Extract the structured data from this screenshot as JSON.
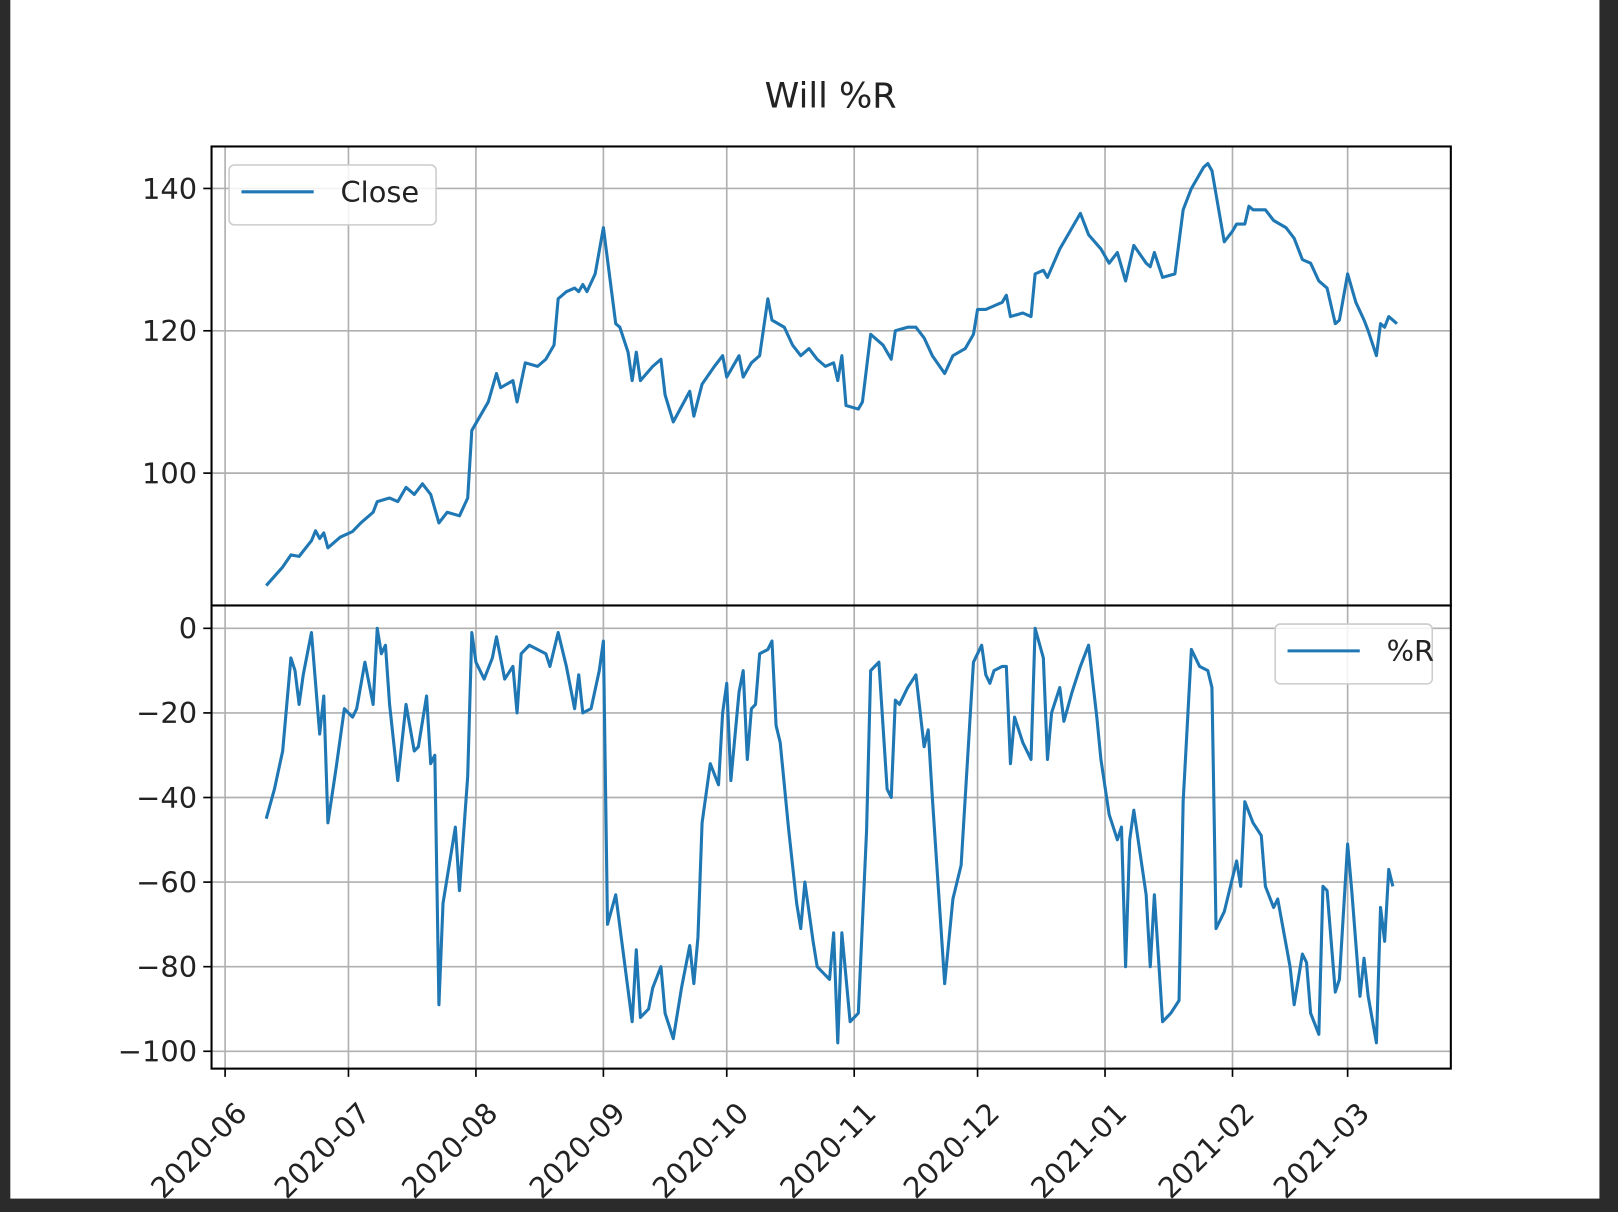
{
  "chart_data": [
    {
      "type": "line",
      "title": "Will %R",
      "x": [
        10,
        12,
        14,
        16,
        18,
        21,
        22,
        23,
        24,
        25,
        28,
        31,
        33,
        36,
        37,
        40,
        42,
        44,
        46,
        48,
        50,
        52,
        54,
        57,
        59,
        60,
        62,
        64,
        66,
        67,
        70,
        71,
        73,
        76,
        78,
        80,
        81,
        83,
        85,
        86,
        87,
        88,
        90,
        92,
        93,
        95,
        96,
        98,
        99,
        100,
        101,
        104,
        106,
        107,
        109,
        113,
        114,
        116,
        119,
        121,
        122,
        125,
        126,
        128,
        130,
        132,
        133,
        136,
        138,
        140,
        142,
        144,
        146,
        148,
        149,
        150,
        151,
        154,
        155,
        157,
        160,
        162,
        163,
        166,
        168,
        170,
        172,
        175,
        177,
        180,
        182,
        183,
        185,
        187,
        189,
        190,
        191,
        194,
        196,
        197,
        199,
        200,
        203,
        205,
        208,
        210,
        213,
        215,
        217,
        219,
        221,
        224,
        225,
        226,
        228,
        231,
        233,
        235,
        238,
        239,
        240,
        243,
        245,
        246,
        248,
        249,
        250,
        253,
        255,
        258,
        260,
        262,
        264,
        266,
        268,
        270,
        271,
        273,
        275,
        277,
        278,
        280,
        281,
        282,
        283,
        285
      ],
      "series": [
        {
          "name": "Close",
          "color": "#1f77b4",
          "values": [
            84.2,
            85.5,
            86.8,
            88.5,
            88.3,
            90.5,
            91.9,
            90.8,
            91.6,
            89.5,
            91,
            91.8,
            93,
            94.5,
            96,
            96.5,
            96,
            98,
            97,
            98.5,
            97,
            93,
            94.5,
            94,
            96.5,
            106,
            108,
            110,
            114,
            112,
            113,
            110,
            115.5,
            115,
            116,
            118,
            124.5,
            125.5,
            126,
            125.5,
            126.5,
            125.5,
            128,
            134.5,
            130,
            121,
            120.5,
            117,
            113,
            117,
            113,
            115,
            116,
            111,
            107.2,
            111.5,
            108,
            112.5,
            115,
            116.5,
            113.5,
            116.5,
            113.5,
            115.5,
            116.5,
            124.5,
            121.5,
            120.5,
            118,
            116.5,
            117.5,
            116,
            115,
            115.5,
            113,
            116.5,
            109.5,
            109,
            110,
            119.5,
            118,
            116,
            120,
            120.5,
            120.5,
            119,
            116.5,
            114,
            116.5,
            117.5,
            119.5,
            123,
            123,
            123.5,
            124,
            125,
            122,
            122.5,
            122,
            128,
            128.5,
            127.5,
            131.5,
            133.5,
            136.5,
            133.5,
            131.5,
            129.5,
            131,
            127,
            132,
            129.5,
            129,
            131,
            127.5,
            128,
            137,
            140,
            143,
            143.5,
            142.5,
            132.5,
            134,
            135,
            135,
            137.5,
            137,
            137,
            135.5,
            134.5,
            133,
            130,
            129.5,
            127,
            126,
            121,
            121.5,
            128,
            124,
            121.5,
            120,
            116.5,
            121,
            120.5,
            122,
            121
          ]
        }
      ],
      "ylim": [
        81.4,
        145.9
      ],
      "yticks": [
        100,
        120,
        140
      ],
      "grid": true,
      "legend": "upper left"
    },
    {
      "type": "line",
      "x": [
        10,
        12,
        14,
        16,
        17,
        18,
        19,
        21,
        23,
        24,
        25,
        27,
        29,
        31,
        32,
        34,
        36,
        37,
        38,
        39,
        40,
        42,
        44,
        46,
        47,
        49,
        50,
        51,
        52,
        53,
        56,
        57,
        59,
        60,
        61,
        63,
        65,
        66,
        68,
        70,
        71,
        72,
        74,
        76,
        78,
        79,
        81,
        83,
        85,
        86,
        87,
        89,
        91,
        92,
        93,
        95,
        97,
        99,
        100,
        101,
        103,
        104,
        106,
        107,
        109,
        111,
        113,
        114,
        115,
        116,
        118,
        120,
        121,
        122,
        123,
        125,
        126,
        127,
        128,
        129,
        130,
        132,
        133,
        134,
        135,
        137,
        139,
        140,
        141,
        143,
        144,
        146,
        147,
        148,
        149,
        150,
        152,
        154,
        156,
        157,
        159,
        161,
        162,
        163,
        164,
        166,
        168,
        170,
        171,
        172,
        175,
        177,
        179,
        181,
        182,
        184,
        185,
        186,
        187,
        189,
        190,
        191,
        192,
        194,
        196,
        197,
        199,
        200,
        201,
        203,
        204,
        206,
        208,
        210,
        212,
        213,
        215,
        217,
        218,
        219,
        220,
        221,
        224,
        225,
        226,
        228,
        230,
        232,
        233,
        235,
        237,
        239,
        240,
        241,
        243,
        245,
        246,
        247,
        248,
        250,
        252,
        253,
        255,
        256,
        259,
        260,
        262,
        263,
        264,
        266,
        267,
        268,
        270,
        271,
        273,
        274,
        276,
        277,
        278,
        280,
        281,
        282,
        283,
        284
      ],
      "series": [
        {
          "name": "%R",
          "color": "#1f77b4",
          "values": [
            -45,
            -38,
            -29,
            -7,
            -10,
            -18,
            -11,
            -1,
            -25,
            -16,
            -46,
            -33,
            -19,
            -21,
            -19,
            -8,
            -18,
            0,
            -6,
            -4,
            -18,
            -36,
            -18,
            -29,
            -28,
            -16,
            -32,
            -30,
            -89,
            -65,
            -47,
            -62,
            -35,
            -1,
            -8,
            -12,
            -7,
            -2,
            -12,
            -9,
            -20,
            -6,
            -4,
            -5,
            -6,
            -9,
            -1,
            -9,
            -19,
            -11,
            -20,
            -19,
            -10,
            -3,
            -70,
            -63,
            -78,
            -93,
            -76,
            -92,
            -90,
            -85,
            -80,
            -91,
            -97,
            -85,
            -75,
            -84,
            -73,
            -46,
            -32,
            -37,
            -20,
            -13,
            -36,
            -15,
            -10,
            -31,
            -19,
            -18,
            -6,
            -5,
            -3,
            -23,
            -27,
            -47,
            -65,
            -71,
            -60,
            -74,
            -80,
            -82,
            -83,
            -72,
            -98,
            -72,
            -93,
            -91,
            -48,
            -10,
            -8,
            -38,
            -40,
            -17,
            -18,
            -14,
            -11,
            -28,
            -24,
            -40,
            -84,
            -64,
            -56,
            -24,
            -8,
            -4,
            -11,
            -13,
            -10,
            -9,
            -9,
            -32,
            -21,
            -27,
            -31,
            0,
            -7,
            -31,
            -20,
            -14,
            -22,
            -15,
            -9,
            -4,
            -21,
            -31,
            -44,
            -50,
            -47,
            -80,
            -50,
            -43,
            -63,
            -80,
            -63,
            -93,
            -91,
            -88,
            -41,
            -5,
            -9,
            -10,
            -14,
            -71,
            -67,
            -59,
            -55,
            -61,
            -41,
            -46,
            -49,
            -61,
            -66,
            -64,
            -80,
            -89,
            -77,
            -79,
            -91,
            -96,
            -61,
            -62,
            -86,
            -83,
            -51,
            -62,
            -87,
            -78,
            -87,
            -98,
            -66,
            -74,
            -57,
            -61
          ]
        }
      ],
      "xlim": [
        -3.3,
        298.1
      ],
      "xticks": [
        {
          "value": 0,
          "label": "2020-06"
        },
        {
          "value": 30,
          "label": "2020-07"
        },
        {
          "value": 61,
          "label": "2020-08"
        },
        {
          "value": 92,
          "label": "2020-09"
        },
        {
          "value": 122,
          "label": "2020-10"
        },
        {
          "value": 153,
          "label": "2020-11"
        },
        {
          "value": 183,
          "label": "2020-12"
        },
        {
          "value": 214,
          "label": "2021-01"
        },
        {
          "value": 245,
          "label": "2021-02"
        },
        {
          "value": 273,
          "label": "2021-03"
        }
      ],
      "ylim": [
        -104.1,
        5.4
      ],
      "yticks": [
        0,
        {
          "value": -20,
          "label": "−20"
        },
        {
          "value": -40,
          "label": "−40"
        },
        {
          "value": -60,
          "label": "−60"
        },
        {
          "value": -80,
          "label": "−80"
        },
        {
          "value": -100,
          "label": "−100"
        }
      ],
      "grid": true,
      "legend": "upper right"
    }
  ]
}
